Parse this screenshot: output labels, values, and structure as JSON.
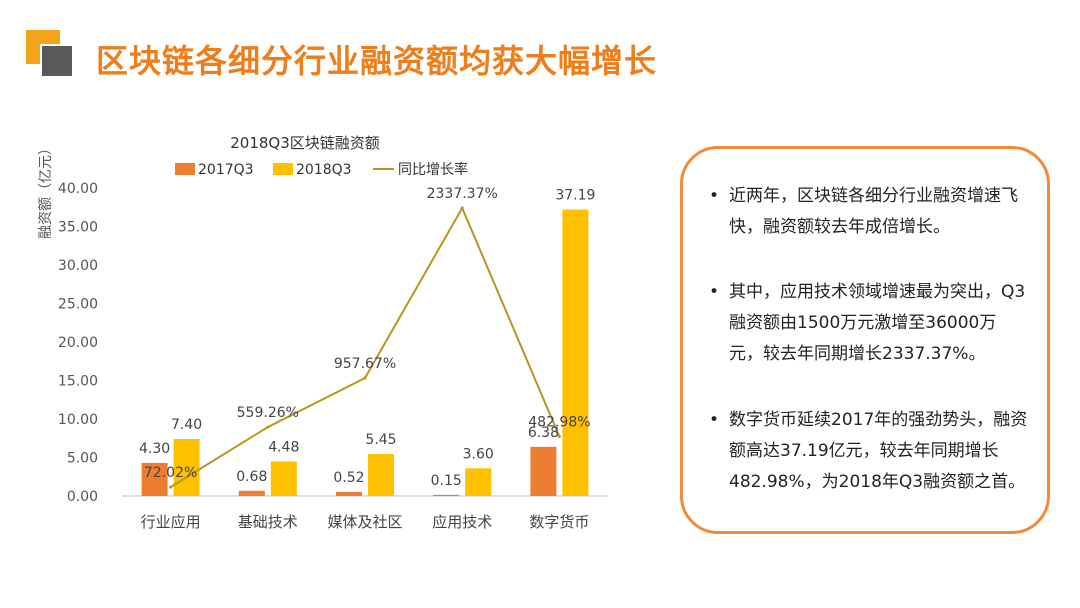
{
  "page": {
    "title": "区块链各细分行业融资额均获大幅增长"
  },
  "chart_data": {
    "type": "bar",
    "title": "2018Q3区块链融资额",
    "ylabel": "融资额（亿元）",
    "xlabel": "",
    "ylim": [
      0,
      40
    ],
    "y_ticks": [
      "0.00",
      "5.00",
      "10.00",
      "15.00",
      "20.00",
      "25.00",
      "30.00",
      "35.00",
      "40.00"
    ],
    "categories": [
      "行业应用",
      "基础技术",
      "媒体及社区",
      "应用技术",
      "数字货币"
    ],
    "series": [
      {
        "name": "2017Q3",
        "values": [
          4.3,
          0.68,
          0.52,
          0.15,
          6.38
        ],
        "labels": [
          "4.30",
          "0.68",
          "0.52",
          "0.15",
          "6.38"
        ],
        "color": "#ed7d31"
      },
      {
        "name": "2018Q3",
        "values": [
          7.4,
          4.48,
          5.45,
          3.6,
          37.19
        ],
        "labels": [
          "7.40",
          "4.48",
          "5.45",
          "3.60",
          "37.19"
        ],
        "color": "#ffc000"
      }
    ],
    "line_series": {
      "name": "同比增长率",
      "values": [
        72.02,
        559.26,
        957.67,
        2337.37,
        482.98
      ],
      "labels": [
        "72.02%",
        "559.26%",
        "957.67%",
        "2337.37%",
        "482.98%"
      ],
      "color": "#b8961e",
      "axis": "secondary"
    },
    "legend_position": "top",
    "grid": false
  },
  "notes": [
    {
      "text": "近两年，区块链各细分行业融资增速飞快，融资额较去年成倍增长。"
    },
    {
      "text": "其中，应用技术领域增速最为突出，Q3 融资额由1500万元激增至36000万元，较去年同期增长2337.37%。"
    },
    {
      "text": "数字货币延续2017年的强劲势头，融资额高达37.19亿元，较去年同期增长482.98%，为2018年Q3融资额之首。"
    }
  ],
  "colors": {
    "accent": "#ee7d1a",
    "box_border": "#f08a3c",
    "logo_orange": "#f5a31a",
    "logo_gray": "#595959"
  },
  "bullet_symbol": "•"
}
